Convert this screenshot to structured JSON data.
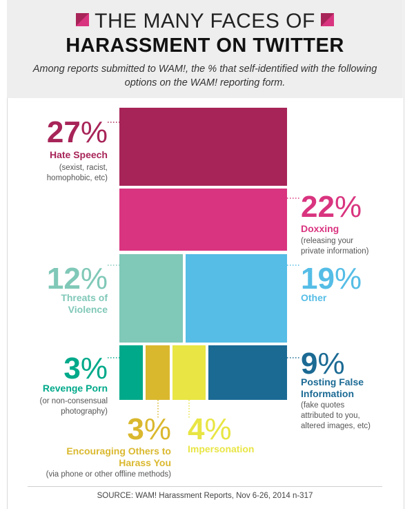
{
  "header": {
    "title_line1": "THE MANY FACES OF",
    "title_line2": "HARASSMENT ON TWITTER",
    "subtitle": "Among reports submitted to WAM!, the % that self-identified with the following options on the WAM! reporting form."
  },
  "chart_data": {
    "type": "treemap",
    "categories": [
      "Hate Speech",
      "Doxxing",
      "Threats of Violence",
      "Other",
      "Revenge Porn",
      "Encouraging Others to Harass You",
      "Impersonation",
      "Posting False Information"
    ],
    "values": [
      27,
      22,
      12,
      19,
      3,
      3,
      4,
      9
    ],
    "unit": "%",
    "colors": [
      "#a72458",
      "#d9347f",
      "#80c8b8",
      "#55bde6",
      "#00a98a",
      "#dab82e",
      "#e8e544",
      "#1b6a94"
    ],
    "items": [
      {
        "pct": "27",
        "label": "Hate Speech",
        "note": [
          "(sexist, racist,",
          "homophobic, etc)"
        ]
      },
      {
        "pct": "22",
        "label": "Doxxing",
        "note": [
          "(releasing your",
          "private information)"
        ]
      },
      {
        "pct": "12",
        "label": [
          "Threats of",
          "Violence"
        ],
        "note": []
      },
      {
        "pct": "19",
        "label": "Other",
        "note": []
      },
      {
        "pct": "3",
        "label": "Revenge Porn",
        "note": [
          "(or non-consensual",
          "photography)"
        ]
      },
      {
        "pct": "3",
        "label": [
          "Encouraging Others to",
          "Harass You"
        ],
        "note": [
          "(via phone or other offline methods)"
        ]
      },
      {
        "pct": "4",
        "label": "Impersonation",
        "note": []
      },
      {
        "pct": "9",
        "label": [
          "Posting False",
          "Information"
        ],
        "note": [
          "(fake quotes",
          "attributed to you,",
          "altered images, etc)"
        ]
      }
    ]
  },
  "source": "SOURCE: WAM! Harassment Reports, Nov 6-26, 2014 n-317"
}
